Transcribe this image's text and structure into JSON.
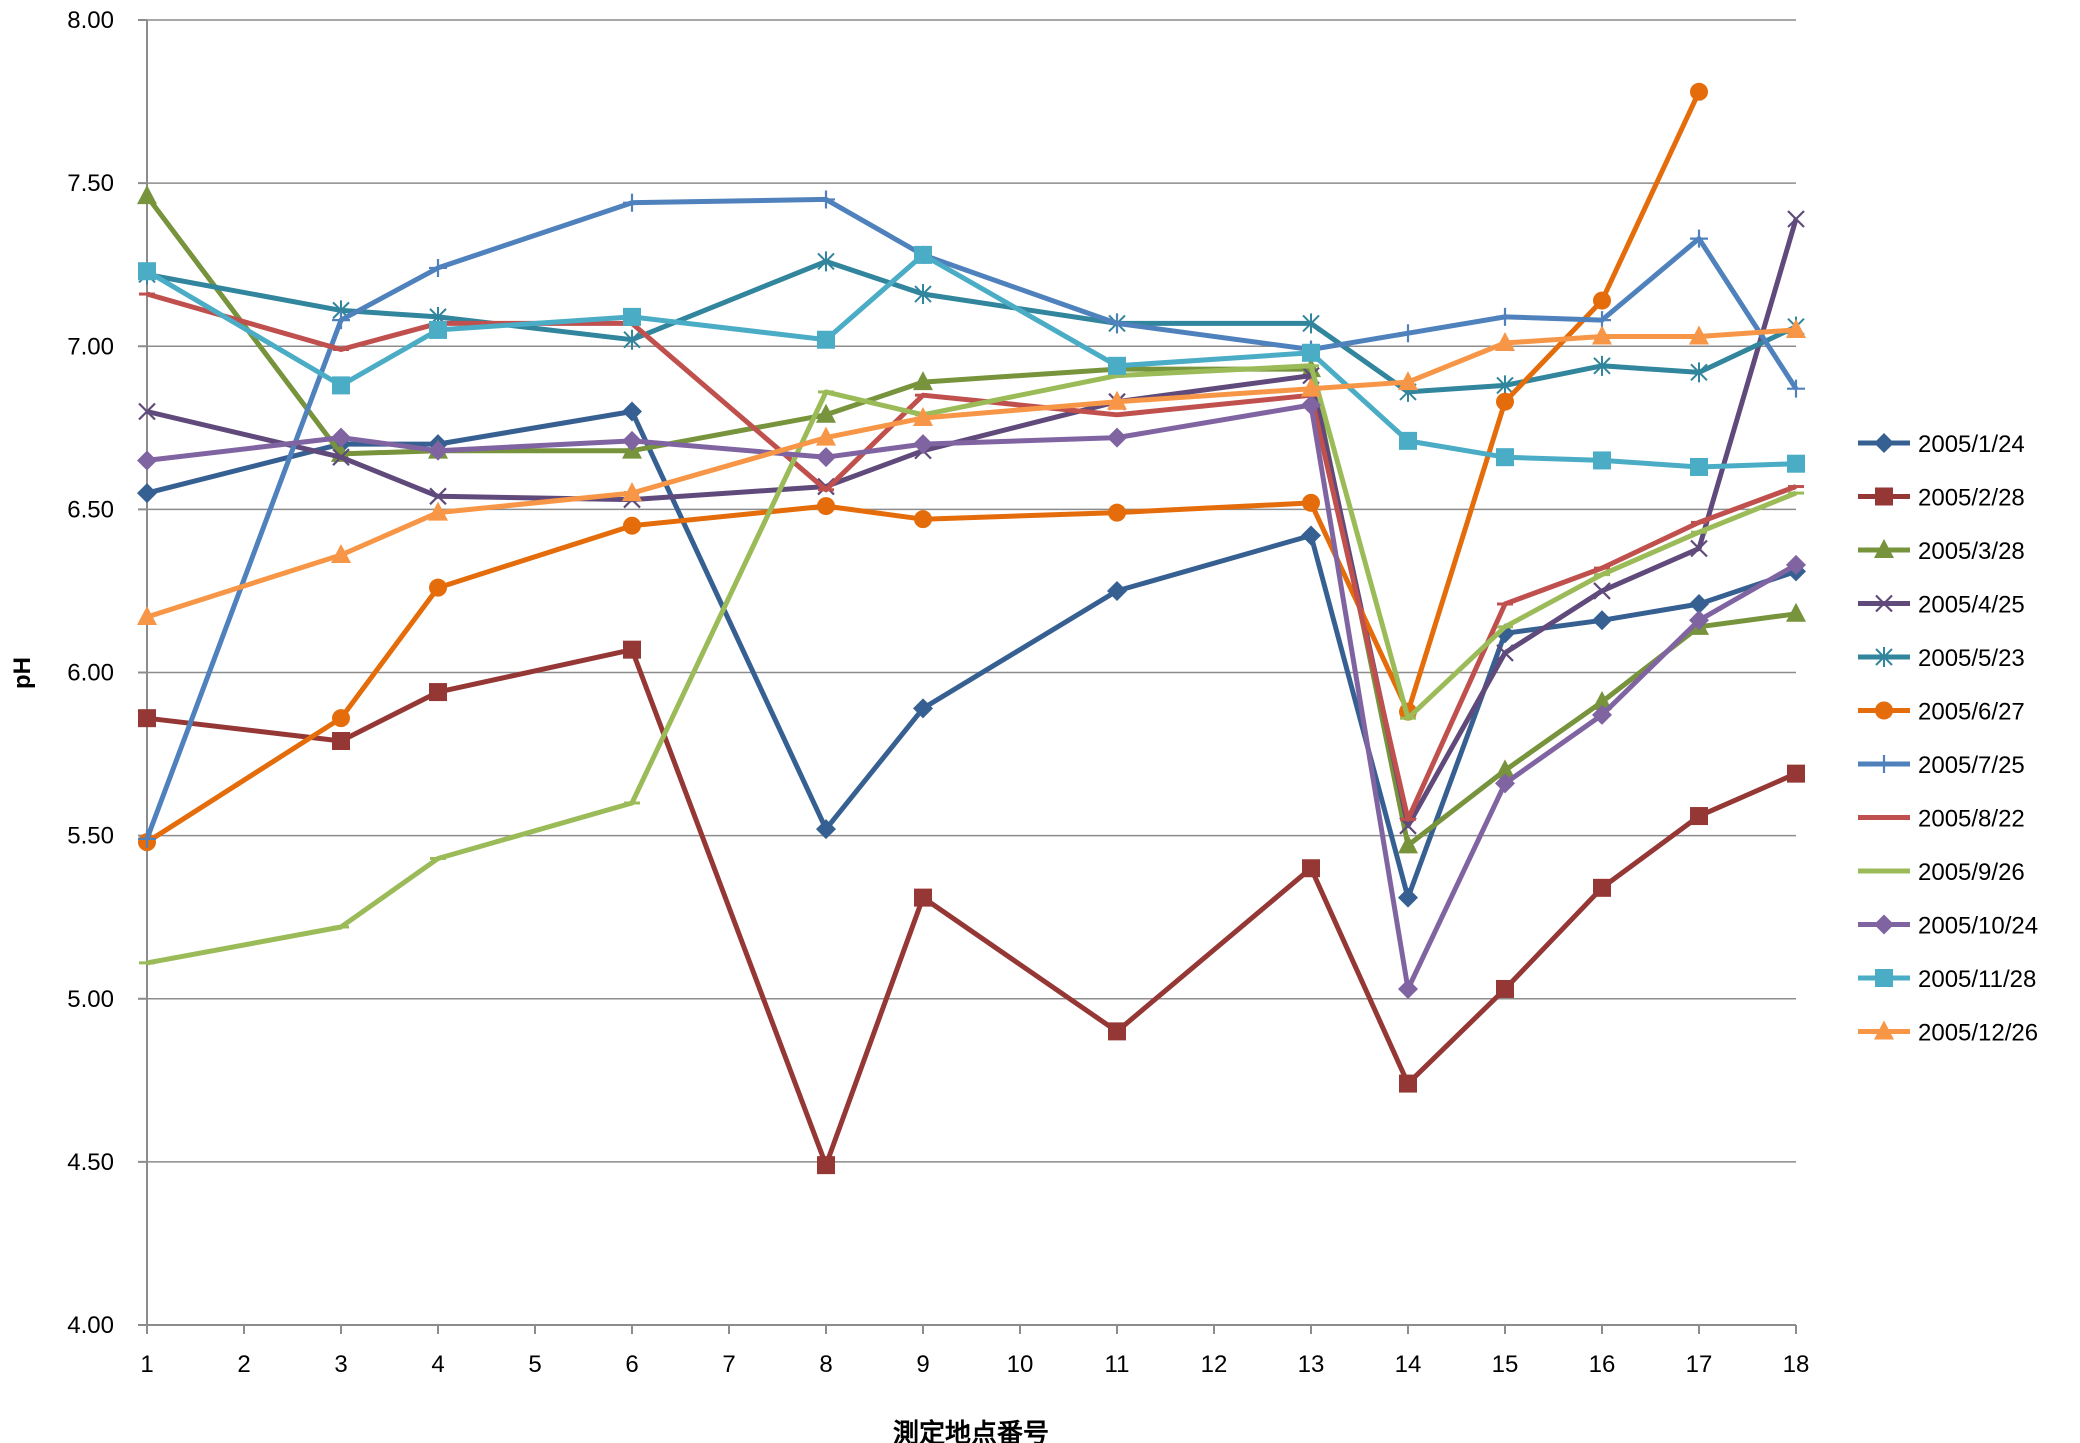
{
  "chart_data": {
    "type": "line",
    "title": "",
    "xlabel": "測定地点番号",
    "ylabel": "pH",
    "x": [
      1,
      2,
      3,
      4,
      5,
      6,
      7,
      8,
      9,
      10,
      11,
      12,
      13,
      14,
      15,
      16,
      17,
      18
    ],
    "ylim": [
      4.0,
      8.0
    ],
    "yticks": [
      "4.00",
      "4.50",
      "5.00",
      "5.50",
      "6.00",
      "6.50",
      "7.00",
      "7.50",
      "8.00"
    ],
    "xticks": [
      "1",
      "2",
      "3",
      "4",
      "5",
      "6",
      "7",
      "8",
      "9",
      "10",
      "11",
      "12",
      "13",
      "14",
      "15",
      "16",
      "17",
      "18"
    ],
    "grid": "horizontal",
    "legend_position": "right",
    "series": [
      {
        "name": "2005/1/24",
        "color": "#376092",
        "marker": "diamond",
        "points": [
          [
            1,
            6.55
          ],
          [
            3,
            6.7
          ],
          [
            4,
            6.7
          ],
          [
            6,
            6.8
          ],
          [
            8,
            5.52
          ],
          [
            9,
            5.89
          ],
          [
            11,
            6.25
          ],
          [
            13,
            6.42
          ],
          [
            14,
            5.31
          ],
          [
            15,
            6.12
          ],
          [
            16,
            6.16
          ],
          [
            17,
            6.21
          ],
          [
            18,
            6.31
          ]
        ]
      },
      {
        "name": "2005/2/28",
        "color": "#953735",
        "marker": "square",
        "points": [
          [
            1,
            5.86
          ],
          [
            3,
            5.79
          ],
          [
            4,
            5.94
          ],
          [
            6,
            6.07
          ],
          [
            8,
            4.49
          ],
          [
            9,
            5.31
          ],
          [
            11,
            4.9
          ],
          [
            13,
            5.4
          ],
          [
            14,
            4.74
          ],
          [
            15,
            5.03
          ],
          [
            16,
            5.34
          ],
          [
            17,
            5.56
          ],
          [
            18,
            5.69
          ]
        ]
      },
      {
        "name": "2005/3/28",
        "color": "#77933C",
        "marker": "triangle",
        "points": [
          [
            1,
            7.46
          ],
          [
            3,
            6.67
          ],
          [
            4,
            6.68
          ],
          [
            6,
            6.68
          ],
          [
            8,
            6.79
          ],
          [
            9,
            6.89
          ],
          [
            11,
            6.93
          ],
          [
            13,
            6.93
          ],
          [
            14,
            5.47
          ],
          [
            15,
            5.7
          ],
          [
            16,
            5.91
          ],
          [
            17,
            6.14
          ],
          [
            18,
            6.18
          ]
        ]
      },
      {
        "name": "2005/4/25",
        "color": "#604A7B",
        "marker": "x",
        "points": [
          [
            1,
            6.8
          ],
          [
            3,
            6.66
          ],
          [
            4,
            6.54
          ],
          [
            6,
            6.53
          ],
          [
            8,
            6.57
          ],
          [
            9,
            6.68
          ],
          [
            11,
            6.83
          ],
          [
            13,
            6.91
          ],
          [
            14,
            5.53
          ],
          [
            15,
            6.06
          ],
          [
            16,
            6.25
          ],
          [
            17,
            6.38
          ],
          [
            18,
            7.39
          ]
        ]
      },
      {
        "name": "2005/5/23",
        "color": "#31859C",
        "marker": "star",
        "points": [
          [
            1,
            7.22
          ],
          [
            3,
            7.11
          ],
          [
            4,
            7.09
          ],
          [
            6,
            7.02
          ],
          [
            8,
            7.26
          ],
          [
            9,
            7.16
          ],
          [
            11,
            7.07
          ],
          [
            13,
            7.07
          ],
          [
            14,
            6.86
          ],
          [
            15,
            6.88
          ],
          [
            16,
            6.94
          ],
          [
            17,
            6.92
          ],
          [
            18,
            7.06
          ]
        ]
      },
      {
        "name": "2005/6/27",
        "color": "#E46C0A",
        "marker": "circle",
        "points": [
          [
            1,
            5.48
          ],
          [
            3,
            5.86
          ],
          [
            4,
            6.26
          ],
          [
            6,
            6.45
          ],
          [
            8,
            6.51
          ],
          [
            9,
            6.47
          ],
          [
            11,
            6.49
          ],
          [
            13,
            6.52
          ],
          [
            14,
            5.88
          ],
          [
            15,
            6.83
          ],
          [
            16,
            7.14
          ],
          [
            17,
            7.78
          ]
        ]
      },
      {
        "name": "2005/7/25",
        "color": "#4F81BD",
        "marker": "plus",
        "points": [
          [
            1,
            5.49
          ],
          [
            3,
            7.08
          ],
          [
            4,
            7.24
          ],
          [
            6,
            7.44
          ],
          [
            8,
            7.45
          ],
          [
            9,
            7.28
          ],
          [
            11,
            7.07
          ],
          [
            13,
            6.99
          ],
          [
            14,
            7.04
          ],
          [
            15,
            7.09
          ],
          [
            16,
            7.08
          ],
          [
            17,
            7.33
          ],
          [
            18,
            6.87
          ]
        ]
      },
      {
        "name": "2005/8/22",
        "color": "#C0504D",
        "marker": "dash",
        "points": [
          [
            1,
            7.16
          ],
          [
            3,
            6.99
          ],
          [
            4,
            7.07
          ],
          [
            6,
            7.07
          ],
          [
            8,
            6.56
          ],
          [
            9,
            6.85
          ],
          [
            11,
            6.79
          ],
          [
            13,
            6.85
          ],
          [
            14,
            5.55
          ],
          [
            15,
            6.21
          ],
          [
            16,
            6.32
          ],
          [
            17,
            6.46
          ],
          [
            18,
            6.57
          ]
        ]
      },
      {
        "name": "2005/9/26",
        "color": "#9BBB59",
        "marker": "dash",
        "points": [
          [
            1,
            5.11
          ],
          [
            3,
            5.22
          ],
          [
            4,
            5.43
          ],
          [
            6,
            5.6
          ],
          [
            8,
            6.86
          ],
          [
            9,
            6.79
          ],
          [
            11,
            6.91
          ],
          [
            13,
            6.94
          ],
          [
            14,
            5.86
          ],
          [
            15,
            6.14
          ],
          [
            16,
            6.3
          ],
          [
            17,
            6.43
          ],
          [
            18,
            6.55
          ]
        ]
      },
      {
        "name": "2005/10/24",
        "color": "#8064A2",
        "marker": "diamond",
        "points": [
          [
            1,
            6.65
          ],
          [
            3,
            6.72
          ],
          [
            4,
            6.68
          ],
          [
            6,
            6.71
          ],
          [
            8,
            6.66
          ],
          [
            9,
            6.7
          ],
          [
            11,
            6.72
          ],
          [
            13,
            6.82
          ],
          [
            14,
            5.03
          ],
          [
            15,
            5.66
          ],
          [
            16,
            5.87
          ],
          [
            17,
            6.16
          ],
          [
            18,
            6.33
          ]
        ]
      },
      {
        "name": "2005/11/28",
        "color": "#4BACC6",
        "marker": "square",
        "points": [
          [
            1,
            7.23
          ],
          [
            3,
            6.88
          ],
          [
            4,
            7.05
          ],
          [
            6,
            7.09
          ],
          [
            8,
            7.02
          ],
          [
            9,
            7.28
          ],
          [
            11,
            6.94
          ],
          [
            13,
            6.98
          ],
          [
            14,
            6.71
          ],
          [
            15,
            6.66
          ],
          [
            16,
            6.65
          ],
          [
            17,
            6.63
          ],
          [
            18,
            6.64
          ]
        ]
      },
      {
        "name": "2005/12/26",
        "color": "#F79646",
        "marker": "triangle",
        "points": [
          [
            1,
            6.17
          ],
          [
            3,
            6.36
          ],
          [
            4,
            6.49
          ],
          [
            6,
            6.55
          ],
          [
            8,
            6.72
          ],
          [
            9,
            6.78
          ],
          [
            11,
            6.83
          ],
          [
            13,
            6.87
          ],
          [
            14,
            6.89
          ],
          [
            15,
            7.01
          ],
          [
            16,
            7.03
          ],
          [
            17,
            7.03
          ],
          [
            18,
            7.05
          ]
        ]
      }
    ]
  }
}
